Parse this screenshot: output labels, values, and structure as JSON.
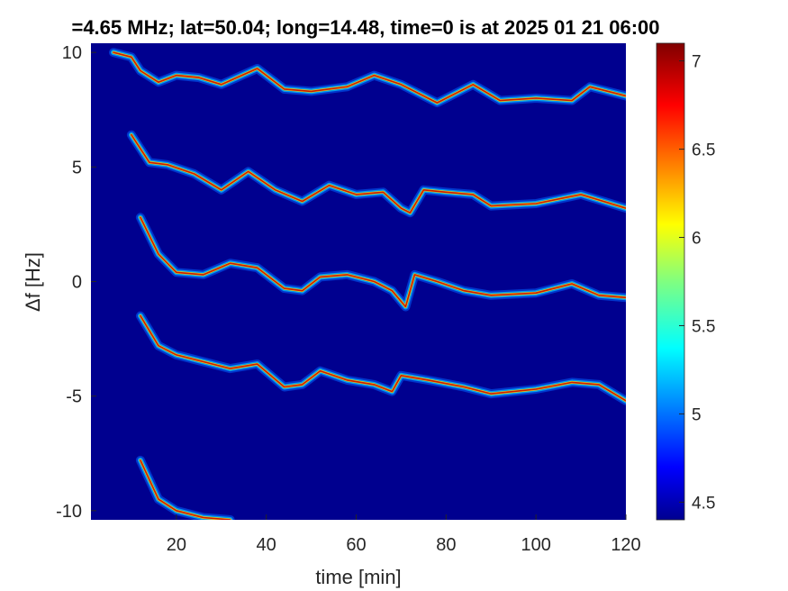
{
  "chart_data": {
    "type": "heatmap",
    "title": "=4.65 MHz;  lat=50.04; long=14.48, time=0 is at 2025 01 21 06:00",
    "xlabel": "time [min]",
    "ylabel": "Δf [Hz]",
    "xlim": [
      1,
      120
    ],
    "ylim": [
      -10.4,
      10.4
    ],
    "x_ticks": [
      "20",
      "40",
      "60",
      "80",
      "100",
      "120"
    ],
    "x_tick_values": [
      20,
      40,
      60,
      80,
      100,
      120
    ],
    "y_ticks": [
      "10",
      "5",
      "0",
      "-5",
      "-10"
    ],
    "y_tick_values": [
      10,
      5,
      0,
      -5,
      -10
    ],
    "colorbar": {
      "colormap": "jet",
      "range": [
        4.4,
        7.1
      ],
      "ticks": [
        "7",
        "6.5",
        "6",
        "5.5",
        "5",
        "4.5"
      ],
      "tick_values": [
        7,
        6.5,
        6,
        5.5,
        5,
        4.5
      ]
    },
    "background_value": 4.45,
    "traces": [
      {
        "name": "",
        "points": [
          [
            6,
            10.0
          ],
          [
            10,
            9.8
          ],
          [
            12,
            9.2
          ],
          [
            16,
            8.7
          ],
          [
            20,
            9.0
          ],
          [
            25,
            8.9
          ],
          [
            30,
            8.6
          ],
          [
            38,
            9.3
          ],
          [
            44,
            8.4
          ],
          [
            50,
            8.3
          ],
          [
            58,
            8.5
          ],
          [
            64,
            9.0
          ],
          [
            70,
            8.6
          ],
          [
            78,
            7.8
          ],
          [
            86,
            8.6
          ],
          [
            92,
            7.9
          ],
          [
            100,
            8.0
          ],
          [
            108,
            7.9
          ],
          [
            112,
            8.5
          ],
          [
            120,
            8.1
          ]
        ]
      },
      {
        "name": "",
        "points": [
          [
            10,
            6.4
          ],
          [
            14,
            5.2
          ],
          [
            18,
            5.1
          ],
          [
            24,
            4.7
          ],
          [
            30,
            4.0
          ],
          [
            36,
            4.8
          ],
          [
            42,
            4.0
          ],
          [
            48,
            3.5
          ],
          [
            54,
            4.2
          ],
          [
            60,
            3.8
          ],
          [
            66,
            3.9
          ],
          [
            70,
            3.2
          ],
          [
            72,
            3.0
          ],
          [
            75,
            4.0
          ],
          [
            80,
            3.9
          ],
          [
            86,
            3.8
          ],
          [
            90,
            3.3
          ],
          [
            100,
            3.4
          ],
          [
            110,
            3.8
          ],
          [
            120,
            3.2
          ]
        ]
      },
      {
        "name": "",
        "points": [
          [
            12,
            2.8
          ],
          [
            16,
            1.2
          ],
          [
            20,
            0.4
          ],
          [
            26,
            0.3
          ],
          [
            32,
            0.8
          ],
          [
            38,
            0.6
          ],
          [
            44,
            -0.3
          ],
          [
            48,
            -0.4
          ],
          [
            52,
            0.2
          ],
          [
            58,
            0.3
          ],
          [
            64,
            0.0
          ],
          [
            68,
            -0.4
          ],
          [
            71,
            -1.1
          ],
          [
            73,
            0.3
          ],
          [
            78,
            0.0
          ],
          [
            84,
            -0.4
          ],
          [
            90,
            -0.6
          ],
          [
            100,
            -0.5
          ],
          [
            108,
            -0.1
          ],
          [
            114,
            -0.6
          ],
          [
            120,
            -0.7
          ]
        ]
      },
      {
        "name": "",
        "points": [
          [
            12,
            -1.5
          ],
          [
            16,
            -2.8
          ],
          [
            20,
            -3.2
          ],
          [
            26,
            -3.5
          ],
          [
            32,
            -3.8
          ],
          [
            38,
            -3.6
          ],
          [
            44,
            -4.6
          ],
          [
            48,
            -4.5
          ],
          [
            52,
            -3.9
          ],
          [
            58,
            -4.3
          ],
          [
            64,
            -4.5
          ],
          [
            68,
            -4.8
          ],
          [
            70,
            -4.1
          ],
          [
            76,
            -4.3
          ],
          [
            84,
            -4.6
          ],
          [
            90,
            -4.9
          ],
          [
            100,
            -4.7
          ],
          [
            108,
            -4.4
          ],
          [
            114,
            -4.5
          ],
          [
            120,
            -5.2
          ]
        ]
      },
      {
        "name": "",
        "points": [
          [
            12,
            -7.8
          ],
          [
            16,
            -9.5
          ],
          [
            20,
            -10.0
          ],
          [
            26,
            -10.3
          ],
          [
            32,
            -10.4
          ]
        ]
      }
    ],
    "grid": false,
    "legend": "none"
  }
}
